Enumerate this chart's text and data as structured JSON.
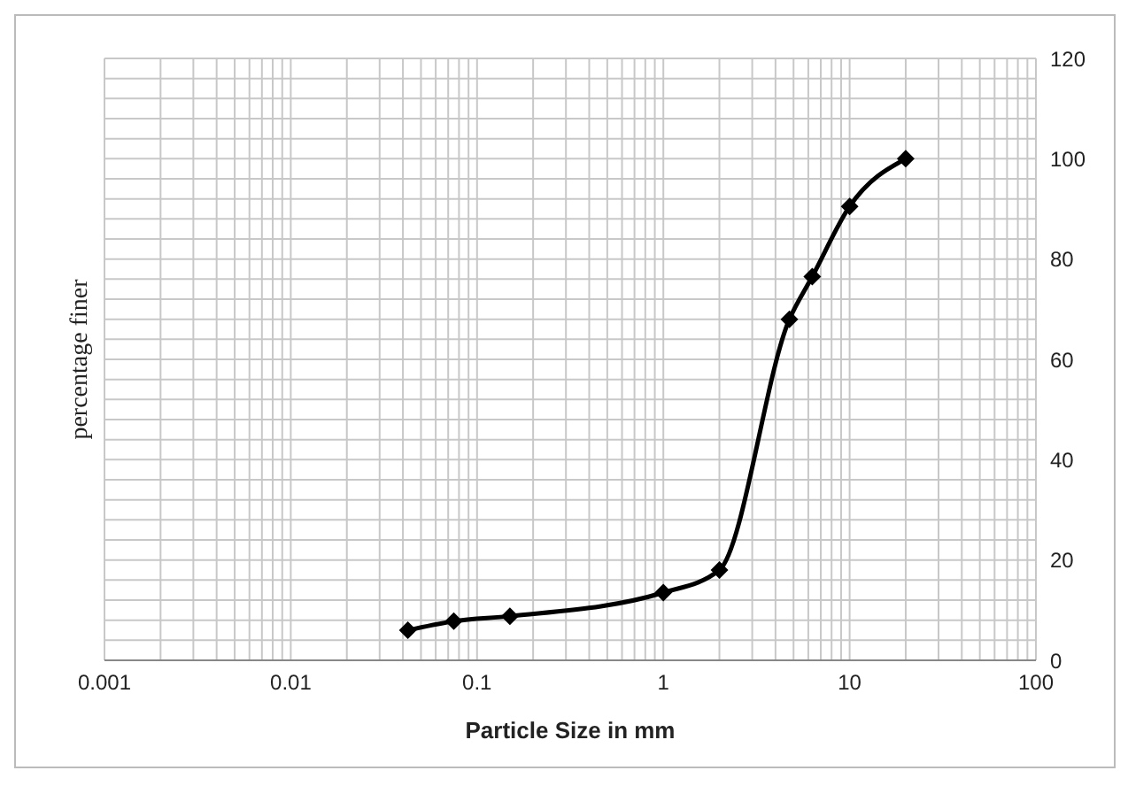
{
  "chart_data": {
    "type": "line",
    "xlabel": "Particle Size in mm",
    "ylabel": "percentage finer",
    "x": [
      0.0425,
      0.075,
      0.15,
      1,
      2,
      4.75,
      6.3,
      10,
      20
    ],
    "series": [
      {
        "color": "#000000",
        "values": [
          6,
          7.8,
          8.8,
          13.5,
          18,
          68,
          76.5,
          90.5,
          100
        ]
      }
    ],
    "log": "x",
    "xlim": [
      0.001,
      100
    ],
    "xticks": [
      0.001,
      {
        "value": 0.002,
        "label": null
      },
      {
        "value": 0.003,
        "label": null
      },
      {
        "value": 0.004,
        "label": null
      },
      {
        "value": 0.005,
        "label": null
      },
      {
        "value": 0.006,
        "label": null
      },
      {
        "value": 0.007,
        "label": null
      },
      {
        "value": 0.008,
        "label": null
      },
      {
        "value": 0.009,
        "label": null
      },
      0.01,
      {
        "value": 0.02,
        "label": null
      },
      {
        "value": 0.03,
        "label": null
      },
      {
        "value": 0.04,
        "label": null
      },
      {
        "value": 0.05,
        "label": null
      },
      {
        "value": 0.06,
        "label": null
      },
      {
        "value": 0.07,
        "label": null
      },
      {
        "value": 0.08,
        "label": null
      },
      {
        "value": 0.09,
        "label": null
      },
      0.1,
      {
        "value": 0.2,
        "label": null
      },
      {
        "value": 0.3,
        "label": null
      },
      {
        "value": 0.4,
        "label": null
      },
      {
        "value": 0.5,
        "label": null
      },
      {
        "value": 0.6,
        "label": null
      },
      {
        "value": 0.7,
        "label": null
      },
      {
        "value": 0.8,
        "label": null
      },
      {
        "value": 0.9,
        "label": null
      },
      1,
      {
        "value": 2,
        "label": null
      },
      {
        "value": 3,
        "label": null
      },
      {
        "value": 4,
        "label": null
      },
      {
        "value": 5,
        "label": null
      },
      {
        "value": 6,
        "label": null
      },
      {
        "value": 7,
        "label": null
      },
      {
        "value": 8,
        "label": null
      },
      {
        "value": 9,
        "label": null
      },
      10,
      {
        "value": 20,
        "label": null
      },
      {
        "value": 30,
        "label": null
      },
      {
        "value": 40,
        "label": null
      },
      {
        "value": 50,
        "label": null
      },
      {
        "value": 60,
        "label": null
      },
      {
        "value": 70,
        "label": null
      },
      {
        "value": 80,
        "label": null
      },
      {
        "value": 90,
        "label": null
      },
      100
    ],
    "ylim": [
      0,
      120
    ],
    "yticks": [
      0,
      {
        "value": 4,
        "label": null
      },
      {
        "value": 8,
        "label": null
      },
      {
        "value": 12,
        "label": null
      },
      {
        "value": 16,
        "label": null
      },
      20,
      {
        "value": 24,
        "label": null
      },
      {
        "value": 28,
        "label": null
      },
      {
        "value": 32,
        "label": null
      },
      {
        "value": 36,
        "label": null
      },
      40,
      {
        "value": 44,
        "label": null
      },
      {
        "value": 48,
        "label": null
      },
      {
        "value": 52,
        "label": null
      },
      {
        "value": 56,
        "label": null
      },
      60,
      {
        "value": 64,
        "label": null
      },
      {
        "value": 68,
        "label": null
      },
      {
        "value": 72,
        "label": null
      },
      {
        "value": 76,
        "label": null
      },
      80,
      {
        "value": 84,
        "label": null
      },
      {
        "value": 88,
        "label": null
      },
      {
        "value": 92,
        "label": null
      },
      {
        "value": 96,
        "label": null
      },
      100,
      {
        "value": 104,
        "label": null
      },
      {
        "value": 108,
        "label": null
      },
      {
        "value": 112,
        "label": null
      },
      {
        "value": 116,
        "label": null
      },
      120
    ],
    "grid": true,
    "marker": "diamond",
    "line_style": "solid"
  }
}
